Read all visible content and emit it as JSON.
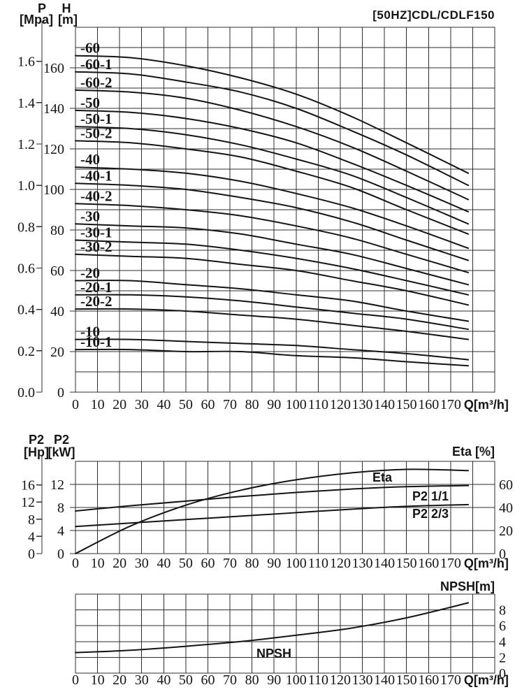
{
  "title": "[50HZ]CDL/CDLF150",
  "colors": {
    "ink": "#141414",
    "grid": "#2e2e2e",
    "background": "#ffffff"
  },
  "x_axis_label": "Q[m³/h]",
  "chart_data": [
    {
      "id": "head-capacity",
      "type": "line",
      "title": "[50HZ]CDL/CDLF150",
      "xlabel": "Q[m³/h]",
      "xlim": [
        0,
        190
      ],
      "ylim": [
        0,
        180
      ],
      "grid": "on",
      "x_ticks": [
        0,
        10,
        20,
        30,
        40,
        50,
        60,
        70,
        80,
        90,
        100,
        110,
        120,
        130,
        140,
        150,
        160,
        170
      ],
      "left_axis_outer": {
        "title": "P",
        "unit": "[Mpa]",
        "ticks": [
          "0.0",
          "0.2",
          "0.4",
          "0.6",
          "0.8",
          "1.0",
          "1.2",
          "1.4",
          "1.6"
        ]
      },
      "left_axis_inner": {
        "title": "H",
        "unit": "[m]",
        "ticks": [
          0,
          20,
          40,
          60,
          80,
          100,
          120,
          140,
          160
        ]
      },
      "x": [
        0,
        25,
        50,
        75,
        100,
        125,
        150,
        178
      ],
      "series": [
        {
          "name": "-60",
          "values": [
            166,
            165,
            161,
            155,
            147,
            136,
            123,
            108
          ]
        },
        {
          "name": "-60-1",
          "values": [
            158,
            157,
            153,
            148,
            140,
            129,
            117,
            102
          ]
        },
        {
          "name": "-60-2",
          "values": [
            149,
            148,
            145,
            139,
            131,
            121,
            109,
            95
          ]
        },
        {
          "name": "-50",
          "values": [
            139,
            138,
            135,
            130,
            123,
            113,
            102,
            89
          ]
        },
        {
          "name": "-50-1",
          "values": [
            131,
            130,
            127,
            122,
            115,
            107,
            96,
            83
          ]
        },
        {
          "name": "-50-2",
          "values": [
            124,
            123,
            120,
            116,
            109,
            101,
            90,
            78
          ]
        },
        {
          "name": "-40",
          "values": [
            111,
            110,
            108,
            104,
            98,
            91,
            82,
            71
          ]
        },
        {
          "name": "-40-1",
          "values": [
            103,
            102,
            100,
            96,
            91,
            84,
            75,
            65
          ]
        },
        {
          "name": "-40-2",
          "values": [
            93,
            92,
            90,
            87,
            82,
            76,
            68,
            59
          ]
        },
        {
          "name": "-30",
          "values": [
            83,
            82,
            81,
            78,
            73,
            68,
            61,
            53
          ]
        },
        {
          "name": "-30-1",
          "values": [
            75,
            74,
            73,
            70,
            66,
            61,
            55,
            48
          ]
        },
        {
          "name": "-30-2",
          "values": [
            68,
            67,
            66,
            63,
            60,
            55,
            50,
            43
          ]
        },
        {
          "name": "-20",
          "values": [
            55,
            55,
            53,
            51,
            48,
            45,
            40,
            35
          ]
        },
        {
          "name": "-20-1",
          "values": [
            48,
            48,
            47,
            45,
            42,
            39,
            36,
            31
          ]
        },
        {
          "name": "-20-2",
          "values": [
            41,
            41,
            40,
            38,
            36,
            33,
            30,
            26
          ]
        },
        {
          "name": "-10",
          "values": [
            26,
            26,
            25,
            24,
            23,
            21,
            19,
            16
          ]
        },
        {
          "name": "-10-1",
          "values": [
            21,
            21,
            20,
            20,
            18,
            17,
            15,
            13
          ]
        }
      ]
    },
    {
      "id": "power-efficiency",
      "type": "line",
      "xlabel": "Q[m³/h]",
      "xlim": [
        0,
        190
      ],
      "ylim_kw": [
        0,
        16
      ],
      "ylim_pct": [
        0,
        80
      ],
      "grid": "on",
      "x_ticks": [
        0,
        10,
        20,
        30,
        40,
        50,
        60,
        70,
        80,
        90,
        100,
        110,
        120,
        130,
        140,
        150,
        160,
        170
      ],
      "left_axis_outer": {
        "title": "P2",
        "unit": "[Hp]",
        "ticks": [
          0,
          4,
          8,
          12,
          16
        ]
      },
      "left_axis_inner": {
        "title": "P2",
        "unit": "[kW]",
        "ticks": [
          0,
          4,
          8,
          12
        ]
      },
      "right_axis": {
        "title": "Eta [%]",
        "ticks": [
          0,
          20,
          40,
          60
        ]
      },
      "x": [
        0,
        25,
        50,
        75,
        100,
        125,
        150,
        178
      ],
      "series": [
        {
          "name": "Eta",
          "unit": "pct",
          "values": [
            0,
            24,
            42,
            55,
            64,
            70,
            73,
            72
          ]
        },
        {
          "name": "P2 1/1",
          "unit": "kW",
          "values": [
            7.4,
            8.3,
            9.1,
            9.9,
            10.6,
            11.2,
            11.6,
            11.8
          ]
        },
        {
          "name": "P2 2/3",
          "unit": "kW",
          "values": [
            4.7,
            5.3,
            5.9,
            6.5,
            7.1,
            7.7,
            8.2,
            8.5
          ]
        }
      ]
    },
    {
      "id": "npsh",
      "type": "line",
      "xlabel": "Q[m³/h]",
      "xlim": [
        0,
        190
      ],
      "ylim": [
        0,
        10
      ],
      "grid": "on",
      "x_ticks": [
        0,
        10,
        20,
        30,
        40,
        50,
        60,
        70,
        80,
        90,
        100,
        110,
        120,
        130,
        140,
        150,
        160,
        170
      ],
      "right_axis": {
        "title": "NPSH[m]",
        "ticks": [
          0,
          2,
          4,
          6,
          8
        ]
      },
      "x": [
        0,
        25,
        50,
        75,
        100,
        125,
        150,
        178
      ],
      "series": [
        {
          "name": "NPSH",
          "unit": "m",
          "values": [
            2.6,
            2.9,
            3.4,
            4.0,
            4.8,
            5.7,
            7.0,
            8.9
          ]
        }
      ]
    }
  ]
}
